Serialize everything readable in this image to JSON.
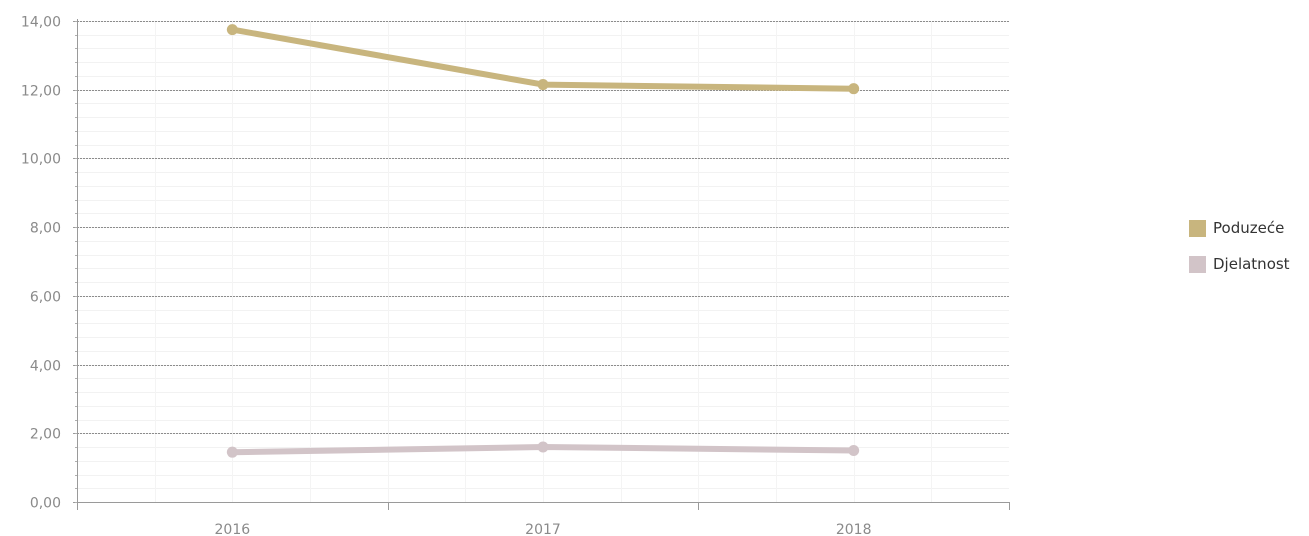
{
  "chart_data": {
    "type": "line",
    "categories": [
      "2016",
      "2017",
      "2018"
    ],
    "series": [
      {
        "name": "Poduzeće",
        "values": [
          13.75,
          12.15,
          12.03
        ],
        "color": "#c8b57e"
      },
      {
        "name": "Djelatnost",
        "values": [
          1.45,
          1.6,
          1.5
        ],
        "color": "#d2c4c8"
      }
    ],
    "ylim": [
      0,
      14
    ],
    "yticks": [
      "0,00",
      "2,00",
      "4,00",
      "6,00",
      "8,00",
      "10,00",
      "12,00",
      "14,00"
    ],
    "grid": true,
    "legend_position": "right",
    "title": "",
    "xlabel": "",
    "ylabel": ""
  }
}
